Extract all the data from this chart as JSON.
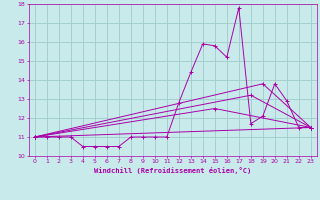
{
  "xlabel": "Windchill (Refroidissement éolien,°C)",
  "xlim": [
    -0.5,
    23.5
  ],
  "ylim": [
    10,
    18
  ],
  "yticks": [
    10,
    11,
    12,
    13,
    14,
    15,
    16,
    17,
    18
  ],
  "xticks": [
    0,
    1,
    2,
    3,
    4,
    5,
    6,
    7,
    8,
    9,
    10,
    11,
    12,
    13,
    14,
    15,
    16,
    17,
    18,
    19,
    20,
    21,
    22,
    23
  ],
  "background_color": "#c8eaea",
  "grid_color": "#a0cccc",
  "line_color": "#aa00aa",
  "series_main": {
    "x": [
      0,
      1,
      2,
      3,
      4,
      5,
      6,
      7,
      8,
      9,
      10,
      11,
      12,
      13,
      14,
      15,
      16,
      17,
      18,
      19,
      20,
      21,
      22,
      23
    ],
    "y": [
      11.0,
      11.0,
      11.0,
      11.0,
      10.5,
      10.5,
      10.5,
      10.5,
      11.0,
      11.0,
      11.0,
      11.0,
      12.8,
      14.4,
      15.9,
      15.8,
      15.2,
      17.8,
      11.7,
      12.1,
      13.8,
      12.9,
      11.5,
      11.5
    ]
  },
  "series_lines": [
    {
      "x": [
        0,
        23
      ],
      "y": [
        11.0,
        11.5
      ]
    },
    {
      "x": [
        0,
        15,
        23
      ],
      "y": [
        11.0,
        12.5,
        11.5
      ]
    },
    {
      "x": [
        0,
        18,
        23
      ],
      "y": [
        11.0,
        13.2,
        11.5
      ]
    },
    {
      "x": [
        0,
        19,
        23
      ],
      "y": [
        11.0,
        13.8,
        11.5
      ]
    }
  ]
}
